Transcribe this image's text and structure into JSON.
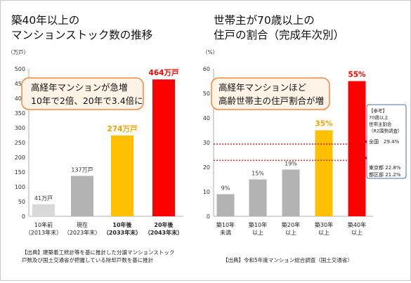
{
  "chart_data": [
    {
      "type": "bar",
      "title": "築40年以上の\nマンションストック数の推移",
      "ylabel": "（万戸）",
      "ylim": [
        0,
        500
      ],
      "yticks": [
        0,
        50,
        100,
        150,
        200,
        250,
        300,
        350,
        400,
        450,
        500
      ],
      "grid": false,
      "categories": [
        "10年前\n（2013年末）",
        "現在\n（2023年末）",
        "10年後\n（2033年末）",
        "20年後\n（2043年末）"
      ],
      "category_bold": [
        false,
        false,
        true,
        true
      ],
      "values": [
        41,
        137,
        274,
        464
      ],
      "value_labels": [
        "41万戸",
        "137万戸",
        "274万戸",
        "464万戸"
      ],
      "colors": [
        "#d9d9d9",
        "#b3b3b3",
        "#ffc000",
        "#ff0000"
      ],
      "label_colors": [
        "#333333",
        "#333333",
        "#f0a500",
        "#ff0000"
      ],
      "label_bold": [
        false,
        false,
        true,
        true
      ],
      "callout": "高経年マンションが急増\n10年で2倍、20年で3.4倍に",
      "source": "【出典】建築着工統計等を基に推計した分譲マンションストック\n戸数及び国土交通省が把握している除却戸数を基に推計"
    },
    {
      "type": "bar",
      "title": "世帯主が70歳以上の\n住戸の割合（完成年次別）",
      "ylabel": "（%）",
      "ylim": [
        0,
        60
      ],
      "yticks": [
        0,
        10,
        20,
        30,
        40,
        50,
        60
      ],
      "grid": false,
      "categories": [
        "築10年\n未満",
        "築10年\n以上",
        "築20年\n以上",
        "築30年\n以上",
        "築40年\n以上"
      ],
      "values": [
        9,
        15,
        19,
        35,
        55
      ],
      "value_labels": [
        "9%",
        "15%",
        "19%",
        "35%",
        "55%"
      ],
      "colors": [
        "#b3b3b3",
        "#b3b3b3",
        "#b3b3b3",
        "#ffc000",
        "#ff0000"
      ],
      "label_colors": [
        "#333333",
        "#333333",
        "#333333",
        "#f0a500",
        "#ff0000"
      ],
      "label_bold": [
        false,
        false,
        false,
        true,
        true
      ],
      "callout": "高経年マンションほど\n高齢世帯主の住戸割合が増",
      "reference_box": {
        "heading": "【参考】\n70歳以上\n世帯主割合\n（R2国勢調査）",
        "lines": [
          {
            "label": "全国",
            "value": 29.4,
            "text": "全国　29.4%",
            "color": "#c00000"
          },
          {
            "label": "東京都",
            "value": 22.8,
            "text": "東京都 22.8%",
            "color": "#c00000"
          },
          {
            "label": "都区部",
            "value": 21.2,
            "text": "都区部 21.2%",
            "color": "#c00000"
          }
        ]
      },
      "source": "【出典】令和5年度マンション総合調査（国土交通省）"
    }
  ]
}
